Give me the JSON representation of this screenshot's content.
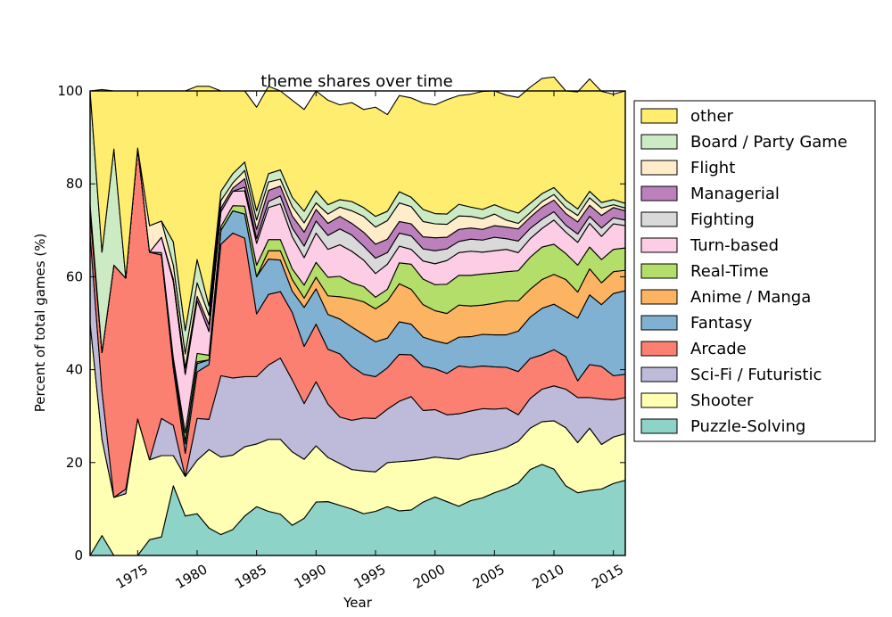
{
  "chart_data": {
    "type": "area",
    "stacked": true,
    "title": "theme shares over time",
    "xlabel": "Year",
    "ylabel": "Percent of total games (%)",
    "xlim": [
      1971,
      2016
    ],
    "ylim": [
      0,
      100
    ],
    "x_ticks": [
      1975,
      1980,
      1985,
      1990,
      1995,
      2000,
      2005,
      2010,
      2015
    ],
    "y_ticks": [
      0,
      20,
      40,
      60,
      80,
      100
    ],
    "legend_position": "right, outside plot",
    "x": [
      1971,
      1972,
      1973,
      1974,
      1975,
      1976,
      1977,
      1978,
      1979,
      1980,
      1981,
      1982,
      1983,
      1984,
      1985,
      1986,
      1987,
      1988,
      1989,
      1990,
      1991,
      1992,
      1993,
      1994,
      1995,
      1996,
      1997,
      1998,
      1999,
      2000,
      2001,
      2002,
      2003,
      2004,
      2005,
      2006,
      2007,
      2008,
      2009,
      2010,
      2011,
      2012,
      2013,
      2014,
      2015,
      2016
    ],
    "series": [
      {
        "name": "Puzzle-Solving",
        "color": "#8dd3c7",
        "values": [
          0,
          4.3,
          0,
          0,
          0,
          3.4,
          4,
          15,
          8.5,
          9,
          5.9,
          4.5,
          5.6,
          8.5,
          10.5,
          9.5,
          8.9,
          6.5,
          8,
          11.5,
          11.6,
          10.8,
          10,
          9,
          9.5,
          10.5,
          9.6,
          9.8,
          11.5,
          12.6,
          11.6,
          10.6,
          11.8,
          12.4,
          13.5,
          14.4,
          15.6,
          18.5,
          19.6,
          18.6,
          15,
          13.5,
          14,
          14.3,
          15.5,
          16.2
        ]
      },
      {
        "name": "Shooter",
        "color": "#ffffb3",
        "values": [
          50,
          20.7,
          12.5,
          13.3,
          29.4,
          17.2,
          17.5,
          6.5,
          8.5,
          11.5,
          16.9,
          16.7,
          16,
          14.9,
          13.5,
          15.5,
          16.1,
          15.8,
          12.7,
          12.1,
          9.5,
          9,
          8.5,
          9.2,
          8.5,
          9.5,
          10.6,
          10.6,
          9.2,
          8.6,
          9.3,
          10.1,
          9.8,
          9.6,
          9,
          8.9,
          9,
          8.9,
          9.2,
          10.4,
          12.5,
          10.8,
          13.4,
          9.6,
          10,
          10
        ]
      },
      {
        "name": "Sci-Fi / Futuristic",
        "color": "#bebada",
        "values": [
          19,
          10.3,
          0,
          1,
          0,
          0,
          8,
          6.5,
          0,
          9,
          6.5,
          17.5,
          16.6,
          15.1,
          14.5,
          16,
          17.5,
          15.5,
          12,
          13.8,
          11.5,
          10,
          10.6,
          11.4,
          11.5,
          11.5,
          13,
          13.8,
          10.5,
          10.2,
          9.4,
          9.8,
          9.5,
          9.6,
          9,
          8.4,
          5.7,
          6.4,
          7,
          7.5,
          8.3,
          9.7,
          6.6,
          9.8,
          8,
          7.8
        ]
      },
      {
        "name": "Arcade",
        "color": "#fb8072",
        "values": [
          4.5,
          8.4,
          50,
          45.4,
          58.3,
          44.7,
          35.2,
          12.3,
          5,
          10,
          11.8,
          28.3,
          31.2,
          29.8,
          13.5,
          15.2,
          14.3,
          14.5,
          12.3,
          12.4,
          11.8,
          13.6,
          11.6,
          9.4,
          9,
          8.9,
          10.1,
          9,
          9.5,
          8.8,
          8.9,
          10.3,
          9.4,
          9.2,
          9.1,
          8.8,
          9.3,
          8.6,
          7.4,
          7.8,
          7,
          3.6,
          7.1,
          7,
          5.2,
          5
        ]
      },
      {
        "name": "Fantasy",
        "color": "#80b1d3",
        "values": [
          2,
          0,
          0,
          0,
          0,
          0,
          0,
          1.4,
          2,
          1.8,
          1,
          3,
          4.8,
          5.2,
          8,
          7.6,
          6.8,
          4.6,
          8.4,
          7.6,
          7.5,
          7.5,
          8.5,
          8.6,
          7.5,
          6.4,
          7,
          6.6,
          6.3,
          6,
          6.4,
          6.2,
          6.6,
          6.8,
          6.9,
          7,
          8.7,
          8.9,
          10,
          9.8,
          9.8,
          13.5,
          15,
          13.3,
          17.7,
          18
        ]
      },
      {
        "name": "Anime / Manga",
        "color": "#fdb462",
        "values": [
          0,
          0,
          0,
          0,
          0,
          0,
          0,
          0.3,
          0.5,
          0.4,
          0,
          0,
          0,
          0,
          0,
          1.8,
          2,
          2.5,
          2,
          2.5,
          4,
          4.8,
          6.1,
          7,
          7.1,
          8,
          8.2,
          7.5,
          7,
          6.5,
          6.5,
          6.9,
          6.6,
          6.3,
          6.8,
          7.3,
          6.5,
          6,
          6.2,
          6.4,
          6.8,
          5.6,
          5.6,
          4.7,
          4.7,
          4.4
        ]
      },
      {
        "name": "Real-Time",
        "color": "#b3de69",
        "values": [
          0,
          0,
          0,
          0,
          0,
          0,
          0.5,
          0.5,
          1.9,
          1.8,
          1,
          0.8,
          1.1,
          1.7,
          2.5,
          2.4,
          2.4,
          2.3,
          2.8,
          3.2,
          4,
          4.4,
          3.4,
          3.3,
          2.5,
          2.5,
          4.5,
          5.4,
          5.5,
          5.6,
          6.3,
          6.4,
          6.6,
          6.7,
          6.5,
          6.3,
          6.5,
          6.9,
          7,
          6.5,
          5.6,
          5.8,
          4.7,
          5,
          4.8,
          4.8
        ]
      },
      {
        "name": "Turn-based",
        "color": "#fccde5",
        "values": [
          0,
          0,
          0,
          0,
          0,
          0,
          3.3,
          16.5,
          12.6,
          11.4,
          5.1,
          3.2,
          3.1,
          3.3,
          4.7,
          6.9,
          7.7,
          6.9,
          5.9,
          6.3,
          6,
          6.8,
          6.8,
          5.7,
          5.1,
          5.4,
          3.6,
          3.2,
          3.9,
          4.5,
          5.1,
          4.9,
          5.2,
          4.7,
          4.8,
          4.8,
          3.9,
          4,
          4,
          5.2,
          4.6,
          4.9,
          5.1,
          5,
          5.5,
          4.8
        ]
      },
      {
        "name": "Fighting",
        "color": "#d9d9d9",
        "values": [
          0,
          0,
          0,
          0,
          0,
          0,
          0,
          0,
          0,
          0,
          0,
          0,
          0,
          0.8,
          1,
          1.3,
          1.7,
          1.9,
          2.5,
          2.6,
          3,
          3.4,
          3.5,
          3,
          3.3,
          2.5,
          2.8,
          2.9,
          2.6,
          2.8,
          2.5,
          2.4,
          2.6,
          2.6,
          2.9,
          2.3,
          2.5,
          2.2,
          2,
          1.8,
          1.5,
          1.8,
          1.5,
          1.8,
          1.3,
          1.2
        ]
      },
      {
        "name": "Managerial",
        "color": "#bc80bd",
        "values": [
          0,
          0,
          0,
          0,
          0,
          0,
          0,
          0.5,
          1.4,
          0.9,
          1.5,
          0.8,
          0.7,
          1.8,
          2,
          2.4,
          2.1,
          2.6,
          3,
          2.5,
          2.6,
          2.7,
          2.5,
          3,
          3,
          2.9,
          2.5,
          2.6,
          2.6,
          2.8,
          2.5,
          2.6,
          2.4,
          2.3,
          2.5,
          2.5,
          2.6,
          2.4,
          2.6,
          2.5,
          2.5,
          2.6,
          2.4,
          2.7,
          2.2,
          2
        ]
      },
      {
        "name": "Flight",
        "color": "#ffedca",
        "values": [
          0,
          0,
          0,
          0,
          0,
          5.7,
          3.5,
          3,
          3,
          2.9,
          2,
          1.6,
          1.1,
          1.8,
          2,
          1.8,
          1.5,
          2,
          2,
          1.4,
          2,
          2,
          2.7,
          3.4,
          3.7,
          4,
          4,
          3.7,
          3.3,
          3,
          2.8,
          2.9,
          2.5,
          2.3,
          2.5,
          1.5,
          1.2,
          1,
          1.2,
          1.2,
          1.3,
          1.4,
          1.6,
          1.6,
          0.6,
          0.6
        ]
      },
      {
        "name": "Board / Party Game",
        "color": "#ccebc5",
        "values": [
          24.5,
          21.6,
          25,
          0,
          0,
          0,
          0,
          5,
          5,
          5,
          2,
          2,
          2,
          1.8,
          2,
          1.8,
          2,
          2,
          2.5,
          2.6,
          2,
          1.6,
          2,
          1.9,
          2.3,
          2,
          2.4,
          2,
          2.6,
          2.2,
          2.2,
          2.5,
          2,
          2,
          2,
          2.3,
          2.2,
          2,
          1.7,
          1.5,
          1.6,
          1.4,
          1.4,
          1.2,
          1.1,
          1
        ]
      },
      {
        "name": "other",
        "color": "#ffed6f",
        "values": [
          0,
          35,
          12.5,
          40.3,
          12.3,
          29,
          28,
          32.5,
          51.6,
          37.3,
          47.3,
          21.6,
          17.8,
          15.3,
          22.3,
          18.8,
          17,
          20.9,
          21.9,
          21.5,
          22.5,
          20.4,
          21.3,
          21.1,
          23.5,
          20.8,
          20.7,
          21.4,
          22.9,
          23.4,
          24.6,
          23.4,
          24.3,
          25.4,
          24.5,
          24.6,
          24.9,
          25,
          24.8,
          23.8,
          23.5,
          25.2,
          24.2,
          23.9,
          22.7,
          24.2
        ]
      }
    ]
  }
}
